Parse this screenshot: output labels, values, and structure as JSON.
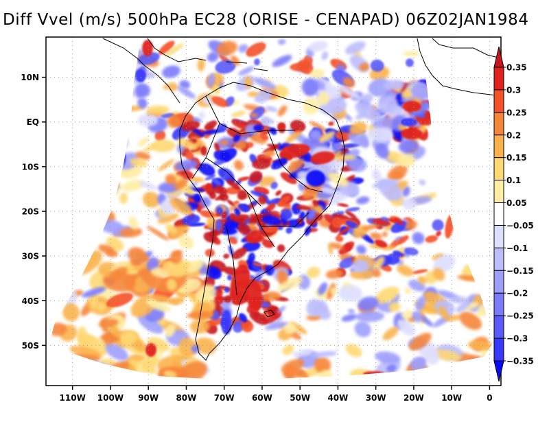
{
  "title": "Diff Vvel (m/s) 500hPa EC28 (ORISE - CENAPAD) 06Z02JAN1984",
  "chart_data": {
    "type": "heatmap",
    "subtype": "geographic filled-contour map",
    "title": "Diff Vvel (m/s) 500hPa EC28 (ORISE - CENAPAD) 06Z02JAN1984",
    "variable": "Vertical velocity difference",
    "units": "m/s",
    "level": "500hPa",
    "experiment": "EC28",
    "comparison": "ORISE - CENAPAD",
    "time": "06Z02JAN1984",
    "region": "South America and adjacent Atlantic/Pacific oceans (regional model domain)",
    "grid": true,
    "x_axis": {
      "ticks": [
        "110W",
        "100W",
        "90W",
        "80W",
        "70W",
        "60W",
        "50W",
        "40W",
        "30W",
        "20W",
        "10W",
        "0"
      ],
      "tick_values": [
        -110,
        -100,
        -90,
        -80,
        -70,
        -60,
        -50,
        -40,
        -30,
        -20,
        -10,
        0
      ],
      "range": [
        -117,
        3
      ]
    },
    "y_axis": {
      "ticks": [
        "10N",
        "EQ",
        "10S",
        "20S",
        "30S",
        "40S",
        "50S"
      ],
      "tick_values": [
        10,
        0,
        -10,
        -20,
        -30,
        -40,
        -50
      ],
      "range": [
        -59,
        19
      ]
    },
    "colorbar": {
      "placement": "right",
      "levels": [
        0.35,
        0.3,
        0.25,
        0.2,
        0.15,
        0.1,
        0.05,
        -0.05,
        -0.1,
        -0.15,
        -0.2,
        -0.25,
        -0.3,
        -0.35
      ],
      "labels": [
        "0.35",
        "0.3",
        "0.25",
        "0.2",
        "0.15",
        "0.1",
        "0.05",
        "-0.05",
        "-0.1",
        "-0.15",
        "-0.2",
        "-0.25",
        "-0.3",
        "-0.35"
      ],
      "colors": [
        "#c8141c",
        "#e0211e",
        "#f5522a",
        "#f6863a",
        "#fbb24c",
        "#fed873",
        "#feeda3",
        "#ffffff",
        "#dedefe",
        "#bdbdfd",
        "#9e9efd",
        "#7b7bfc",
        "#5a5afc",
        "#3939fc",
        "#0a0af8"
      ],
      "extend": "both"
    },
    "features": [
      {
        "region": "Brazil interior / Amazon",
        "pattern": "intense mixed positive/negative cells"
      },
      {
        "region": "Andes and Argentina (30S-45S)",
        "pattern": "strong positive (red) with blue bands"
      },
      {
        "region": "Tropical Atlantic near 5N 20W",
        "pattern": "strong positive and negative couplet"
      },
      {
        "region": "SE Pacific (35S-55S, 80W-110W)",
        "pattern": "weak positive (yellow/orange)"
      },
      {
        "region": "South Atlantic (25S-30S, 20W-40W)",
        "pattern": "frontal band of alternating cells"
      }
    ]
  }
}
